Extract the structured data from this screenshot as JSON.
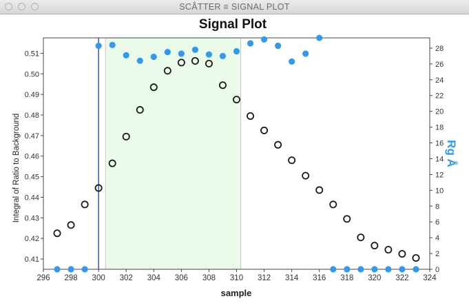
{
  "window": {
    "title": "SCÅTTER ≡ SIGNAL PLOT"
  },
  "chart_data": {
    "type": "scatter",
    "title": "Signal Plot",
    "xlabel": "sample",
    "ylabel": "Integral of Ratio to Background",
    "y2label": "Rg Å",
    "xlim": [
      296,
      324
    ],
    "ylim": [
      0.405,
      0.5175
    ],
    "y2lim": [
      0,
      29.3
    ],
    "xticks": [
      296,
      298,
      300,
      302,
      304,
      306,
      308,
      310,
      312,
      314,
      316,
      318,
      320,
      322,
      324
    ],
    "yticks": [
      0.41,
      0.42,
      0.43,
      0.44,
      0.45,
      0.46,
      0.47,
      0.48,
      0.49,
      0.5,
      0.51
    ],
    "y2ticks": [
      0,
      2,
      4,
      6,
      8,
      10,
      12,
      14,
      16,
      18,
      20,
      22,
      24,
      26,
      28
    ],
    "vline_x": 300,
    "selected_region": [
      300.5,
      310.3
    ],
    "colors": {
      "signal": "#1a1a1a",
      "rg": "#3399ee",
      "region": "#eafbea",
      "vline": "#1f3d8a",
      "y2label": "#3399ee"
    },
    "series": [
      {
        "axis": "left",
        "marker": "open-circle",
        "x": [
          297,
          298,
          299,
          300,
          301,
          302,
          303,
          304,
          305,
          306,
          307,
          308,
          309,
          310,
          311,
          312,
          313,
          314,
          315,
          316,
          317,
          318,
          319,
          320,
          321,
          322,
          323
        ],
        "values": [
          0.4225,
          0.4265,
          0.4365,
          0.4445,
          0.4565,
          0.4695,
          0.4825,
          0.4935,
          0.5015,
          0.5055,
          0.5063,
          0.505,
          0.4945,
          0.4875,
          0.4795,
          0.4725,
          0.4655,
          0.458,
          0.4505,
          0.4435,
          0.4365,
          0.4295,
          0.4205,
          0.4165,
          0.4145,
          0.4125,
          0.4105
        ]
      },
      {
        "axis": "right",
        "marker": "filled-circle",
        "x": [
          297,
          298,
          299,
          300,
          301,
          302,
          303,
          304,
          305,
          306,
          307,
          308,
          309,
          310,
          311,
          312,
          313,
          314,
          315,
          316,
          317,
          318,
          319,
          320,
          321,
          322,
          323
        ],
        "values": [
          0,
          0,
          0,
          28.3,
          28.4,
          27.1,
          26.4,
          26.9,
          27.5,
          27.3,
          27.8,
          27.2,
          27.0,
          27.6,
          28.6,
          29.1,
          28.3,
          26.3,
          27.3,
          29.3,
          0,
          0,
          0,
          0,
          0,
          0,
          0
        ]
      }
    ]
  }
}
